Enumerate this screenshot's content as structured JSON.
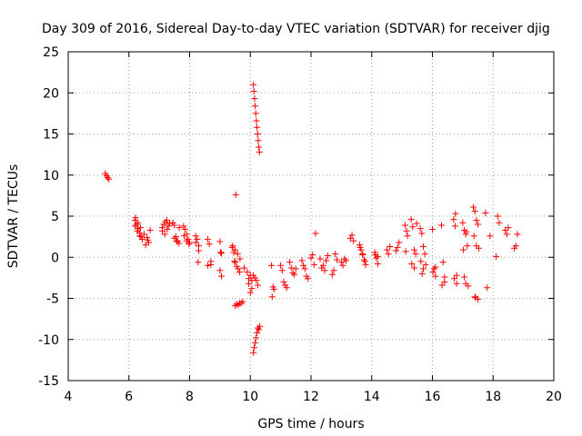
{
  "chart_data": {
    "type": "scatter",
    "title": "Day 309 of 2016, Sidereal Day-to-day VTEC variation (SDTVAR) for receiver djig",
    "xlabel": "GPS time / hours",
    "ylabel": "SDTVAR / TECUs",
    "xlim": [
      4,
      20
    ],
    "ylim": [
      -15,
      25
    ],
    "xticks": [
      4,
      6,
      8,
      10,
      12,
      14,
      16,
      18,
      20
    ],
    "yticks": [
      -15,
      -10,
      -5,
      0,
      5,
      10,
      15,
      20,
      25
    ],
    "grid": true,
    "marker": "plus",
    "color": "#ff0000",
    "series": [
      {
        "name": "SDTVAR",
        "x": [
          5.22,
          5.26,
          5.3,
          5.34,
          6.2,
          6.25,
          6.3,
          6.35,
          6.4,
          6.2,
          6.28,
          6.36,
          6.44,
          6.22,
          6.3,
          6.38,
          6.5,
          6.6,
          6.65,
          6.7,
          6.55,
          6.62,
          7.1,
          7.15,
          7.2,
          7.25,
          7.3,
          7.1,
          7.18,
          7.26,
          7.34,
          7.45,
          7.5,
          7.55,
          7.6,
          7.65,
          7.5,
          7.58,
          7.66,
          7.8,
          7.85,
          7.9,
          7.95,
          8.0,
          7.82,
          7.9,
          7.98,
          8.2,
          8.25,
          8.3,
          8.2,
          8.28,
          8.3,
          8.6,
          8.65,
          8.7,
          8.6,
          8.7,
          9.0,
          9.05,
          9.0,
          9.05,
          9.02,
          9.4,
          9.45,
          9.5,
          9.55,
          9.6,
          9.65,
          9.42,
          9.5,
          9.58,
          9.66,
          9.5,
          9.55,
          9.6,
          9.65,
          9.7,
          9.75,
          9.8,
          9.48,
          9.52,
          9.9,
          9.95,
          10.0,
          10.05,
          9.95,
          10.0,
          10.05,
          10.1,
          10.15,
          10.2,
          10.25,
          10.1,
          10.12,
          10.14,
          10.16,
          10.18,
          10.2,
          10.22,
          10.24,
          10.26,
          10.28,
          10.3,
          10.1,
          10.13,
          10.16,
          10.19,
          10.22,
          10.25,
          10.28,
          10.31,
          10.7,
          10.75,
          10.72,
          10.78,
          11.0,
          11.05,
          11.1,
          11.15,
          11.2,
          11.3,
          11.35,
          11.4,
          11.45,
          11.5,
          11.7,
          11.75,
          11.8,
          11.85,
          11.9,
          12.0,
          12.05,
          12.1,
          12.15,
          12.3,
          12.35,
          12.4,
          12.45,
          12.5,
          12.55,
          12.7,
          12.75,
          12.8,
          12.85,
          13.0,
          13.05,
          13.1,
          13.15,
          13.3,
          13.35,
          13.4,
          13.6,
          13.65,
          13.7,
          13.75,
          13.8,
          13.62,
          13.7,
          13.78,
          14.1,
          14.15,
          14.2,
          14.12,
          14.2,
          14.5,
          14.55,
          14.6,
          14.8,
          14.85,
          14.9,
          15.1,
          15.15,
          15.12,
          15.18,
          15.3,
          15.35,
          15.4,
          15.45,
          15.32,
          15.4,
          15.48,
          15.6,
          15.65,
          15.7,
          15.75,
          15.62,
          15.7,
          15.78,
          15.66,
          16.0,
          16.05,
          16.1,
          16.02,
          16.1,
          16.3,
          16.35,
          16.4,
          16.32,
          16.4,
          16.7,
          16.75,
          16.8,
          16.72,
          16.8,
          16.76,
          17.0,
          17.05,
          17.1,
          17.15,
          17.02,
          17.1,
          17.18,
          17.05,
          17.12,
          17.35,
          17.4,
          17.45,
          17.5,
          17.37,
          17.45,
          17.53,
          17.4,
          17.5,
          17.42,
          17.75,
          17.8,
          17.9,
          18.1,
          18.15,
          18.2,
          18.4,
          18.45,
          18.5,
          18.7,
          18.75,
          18.8
        ],
        "y": [
          10.2,
          9.9,
          9.7,
          9.5,
          4.5,
          4.0,
          3.5,
          3.0,
          2.5,
          3.8,
          3.2,
          2.6,
          2.2,
          4.8,
          4.2,
          3.6,
          2.8,
          2.4,
          1.8,
          3.3,
          1.5,
          2.1,
          3.6,
          4.0,
          4.3,
          4.5,
          3.8,
          3.2,
          2.8,
          3.4,
          4.1,
          4.2,
          3.9,
          2.5,
          2.0,
          1.7,
          2.3,
          1.9,
          3.6,
          3.8,
          3.4,
          2.8,
          2.2,
          1.8,
          2.6,
          2.0,
          1.6,
          2.6,
          2.2,
          1.4,
          1.8,
          -0.6,
          0.8,
          2.2,
          1.6,
          -0.5,
          -1.0,
          -0.9,
          1.9,
          0.5,
          -1.6,
          -2.3,
          0.6,
          1.2,
          0.6,
          -0.6,
          -1.1,
          -1.4,
          -1.8,
          1.4,
          0.9,
          0.4,
          -0.2,
          -5.9,
          -5.7,
          -5.8,
          -5.6,
          -5.6,
          -5.4,
          -1.3,
          -0.5,
          7.6,
          -1.8,
          -3.2,
          -4.3,
          -3.8,
          -2.6,
          -2.2,
          -2.8,
          -2.2,
          -2.5,
          -2.8,
          -3.4,
          21.0,
          20.2,
          19.3,
          18.4,
          17.5,
          16.6,
          15.8,
          15.0,
          14.2,
          13.4,
          12.8,
          -11.6,
          -11.0,
          -10.4,
          -9.8,
          -9.2,
          -8.6,
          -8.8,
          -8.4,
          -1.0,
          -3.6,
          -4.8,
          -3.9,
          -1.0,
          -1.6,
          -3.0,
          -3.4,
          -3.7,
          -0.6,
          -1.3,
          -1.9,
          -2.1,
          -1.4,
          -0.4,
          -1.0,
          -1.4,
          -2.3,
          -2.6,
          -0.1,
          0.3,
          -0.9,
          2.9,
          -0.2,
          -1.3,
          -1.0,
          -1.6,
          -0.4,
          0.2,
          -2.1,
          -1.6,
          0.4,
          -0.3,
          -0.6,
          -1.0,
          -0.2,
          -0.4,
          2.3,
          2.7,
          2.0,
          1.5,
          0.9,
          0.3,
          -0.3,
          -0.9,
          1.2,
          0.4,
          -0.5,
          0.6,
          -0.1,
          -0.8,
          0.3,
          0.1,
          0.9,
          0.4,
          1.3,
          0.8,
          1.2,
          1.8,
          3.9,
          3.2,
          0.7,
          2.6,
          4.6,
          3.7,
          0.9,
          0.4,
          -0.8,
          -1.3,
          4.1,
          3.5,
          2.9,
          1.3,
          0.4,
          -0.5,
          -1.4,
          -0.9,
          -2.0,
          3.4,
          -1.4,
          -2.3,
          -1.8,
          -1.2,
          3.9,
          -0.6,
          -2.4,
          -3.4,
          -3.0,
          4.6,
          3.8,
          -2.2,
          -2.6,
          -3.2,
          5.3,
          4.2,
          3.3,
          2.8,
          1.4,
          0.9,
          -3.2,
          -3.5,
          -2.4,
          3.1,
          6.1,
          5.6,
          4.5,
          4.0,
          2.6,
          1.4,
          1.1,
          -4.8,
          -5.1,
          -4.9,
          5.4,
          -3.7,
          2.6,
          0.1,
          5.0,
          4.2,
          3.3,
          2.8,
          3.6,
          1.1,
          1.4,
          2.8
        ]
      }
    ]
  }
}
